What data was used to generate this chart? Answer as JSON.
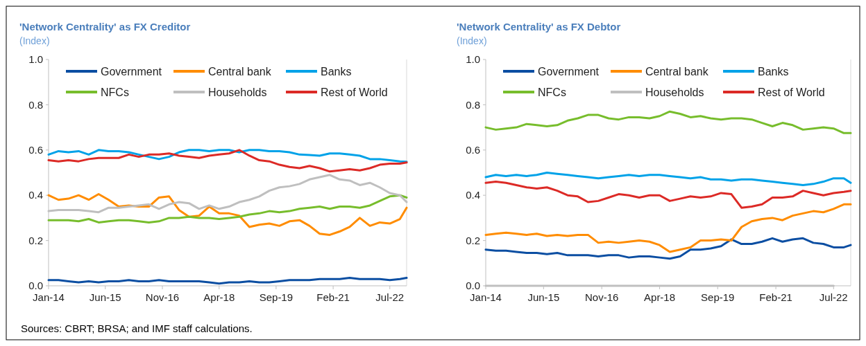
{
  "chart_data": [
    {
      "type": "line",
      "title": "'Network Centrality' as FX Creditor",
      "subtitle": "(Index)",
      "legend": "top",
      "grid": false,
      "annotations": [
        "Sources: CBRT; BRSA; and IMF staff calculations."
      ],
      "x": [
        "2014-01",
        "2014-04",
        "2014-07",
        "2014-10",
        "2015-01",
        "2015-04",
        "2015-07",
        "2015-10",
        "2016-01",
        "2016-04",
        "2016-07",
        "2016-10",
        "2017-01",
        "2017-04",
        "2017-07",
        "2017-10",
        "2018-01",
        "2018-04",
        "2018-07",
        "2018-10",
        "2019-01",
        "2019-04",
        "2019-07",
        "2019-10",
        "2020-01",
        "2020-04",
        "2020-07",
        "2020-10",
        "2021-01",
        "2021-04",
        "2021-07",
        "2021-10",
        "2022-01",
        "2022-04",
        "2022-07",
        "2022-10",
        "2022-12"
      ],
      "xlim": [
        "2014-01",
        "2022-12"
      ],
      "xticks": [
        {
          "value": "2014-01",
          "label": "Jan-14"
        },
        {
          "value": "2015-06",
          "label": "Jun-15"
        },
        {
          "value": "2016-11",
          "label": "Nov-16"
        },
        {
          "value": "2018-04",
          "label": "Apr-18"
        },
        {
          "value": "2019-09",
          "label": "Sep-19"
        },
        {
          "value": "2021-02",
          "label": "Feb-21"
        },
        {
          "value": "2022-07",
          "label": "Jul-22"
        }
      ],
      "ylim": [
        0,
        1
      ],
      "yticks": [
        {
          "value": 0,
          "label": "0.0"
        },
        {
          "value": 0.2,
          "label": "0.2"
        },
        {
          "value": 0.4,
          "label": "0.4"
        },
        {
          "value": 0.6,
          "label": "0.6"
        },
        {
          "value": 0.8,
          "label": "0.8"
        },
        {
          "value": 1,
          "label": "1.0"
        }
      ],
      "series": [
        {
          "name": "Government",
          "color": "#0b4ea2",
          "values": [
            0.025,
            0.025,
            0.02,
            0.015,
            0.02,
            0.015,
            0.02,
            0.02,
            0.025,
            0.02,
            0.02,
            0.025,
            0.02,
            0.02,
            0.02,
            0.02,
            0.015,
            0.01,
            0.015,
            0.015,
            0.02,
            0.015,
            0.015,
            0.02,
            0.025,
            0.025,
            0.025,
            0.03,
            0.03,
            0.03,
            0.035,
            0.03,
            0.03,
            0.03,
            0.025,
            0.03,
            0.035
          ]
        },
        {
          "name": "Central bank",
          "color": "#ff8c00",
          "values": [
            0.4,
            0.38,
            0.385,
            0.4,
            0.38,
            0.405,
            0.38,
            0.35,
            0.355,
            0.35,
            0.35,
            0.39,
            0.395,
            0.335,
            0.305,
            0.31,
            0.35,
            0.32,
            0.32,
            0.31,
            0.26,
            0.27,
            0.275,
            0.265,
            0.285,
            0.29,
            0.265,
            0.23,
            0.225,
            0.24,
            0.26,
            0.3,
            0.265,
            0.28,
            0.275,
            0.295,
            0.345
          ]
        },
        {
          "name": "Banks",
          "color": "#00a2e8",
          "values": [
            0.58,
            0.595,
            0.59,
            0.595,
            0.58,
            0.6,
            0.595,
            0.595,
            0.59,
            0.58,
            0.57,
            0.56,
            0.57,
            0.59,
            0.6,
            0.6,
            0.595,
            0.6,
            0.6,
            0.59,
            0.6,
            0.6,
            0.595,
            0.595,
            0.59,
            0.58,
            0.578,
            0.575,
            0.585,
            0.585,
            0.58,
            0.575,
            0.56,
            0.56,
            0.555,
            0.55,
            0.548
          ]
        },
        {
          "name": "NFCs",
          "color": "#77bd2c",
          "values": [
            0.29,
            0.29,
            0.29,
            0.285,
            0.295,
            0.28,
            0.285,
            0.29,
            0.29,
            0.285,
            0.28,
            0.285,
            0.3,
            0.3,
            0.305,
            0.3,
            0.3,
            0.295,
            0.3,
            0.305,
            0.315,
            0.32,
            0.33,
            0.325,
            0.33,
            0.34,
            0.345,
            0.35,
            0.34,
            0.35,
            0.35,
            0.345,
            0.355,
            0.375,
            0.395,
            0.4,
            0.39
          ]
        },
        {
          "name": "Households",
          "color": "#bfbfbf",
          "values": [
            0.33,
            0.335,
            0.335,
            0.335,
            0.33,
            0.325,
            0.345,
            0.345,
            0.35,
            0.355,
            0.36,
            0.34,
            0.36,
            0.37,
            0.365,
            0.34,
            0.355,
            0.34,
            0.35,
            0.37,
            0.38,
            0.395,
            0.42,
            0.435,
            0.44,
            0.45,
            0.47,
            0.48,
            0.49,
            0.47,
            0.465,
            0.445,
            0.455,
            0.435,
            0.41,
            0.4,
            0.37
          ]
        },
        {
          "name": "Rest of World",
          "color": "#dc2a26",
          "values": [
            0.555,
            0.55,
            0.555,
            0.55,
            0.56,
            0.565,
            0.565,
            0.565,
            0.58,
            0.57,
            0.58,
            0.58,
            0.585,
            0.575,
            0.57,
            0.565,
            0.575,
            0.58,
            0.585,
            0.6,
            0.575,
            0.555,
            0.55,
            0.535,
            0.525,
            0.52,
            0.53,
            0.52,
            0.505,
            0.51,
            0.515,
            0.51,
            0.52,
            0.535,
            0.54,
            0.54,
            0.545
          ]
        }
      ]
    },
    {
      "type": "line",
      "title": "'Network Centrality' as FX Debtor",
      "subtitle": "(Index)",
      "legend": "top",
      "grid": false,
      "x": [
        "2014-01",
        "2014-04",
        "2014-07",
        "2014-10",
        "2015-01",
        "2015-04",
        "2015-07",
        "2015-10",
        "2016-01",
        "2016-04",
        "2016-07",
        "2016-10",
        "2017-01",
        "2017-04",
        "2017-07",
        "2017-10",
        "2018-01",
        "2018-04",
        "2018-07",
        "2018-10",
        "2019-01",
        "2019-04",
        "2019-07",
        "2019-10",
        "2020-01",
        "2020-04",
        "2020-07",
        "2020-10",
        "2021-01",
        "2021-04",
        "2021-07",
        "2021-10",
        "2022-01",
        "2022-04",
        "2022-07",
        "2022-10",
        "2022-12"
      ],
      "xlim": [
        "2014-01",
        "2022-12"
      ],
      "xticks": [
        {
          "value": "2014-01",
          "label": "Jan-14"
        },
        {
          "value": "2015-06",
          "label": "Jun-15"
        },
        {
          "value": "2016-11",
          "label": "Nov-16"
        },
        {
          "value": "2018-04",
          "label": "Apr-18"
        },
        {
          "value": "2019-09",
          "label": "Sep-19"
        },
        {
          "value": "2021-02",
          "label": "Feb-21"
        },
        {
          "value": "2022-07",
          "label": "Jul-22"
        }
      ],
      "ylim": [
        0,
        1
      ],
      "yticks": [
        {
          "value": 0,
          "label": "0.0"
        },
        {
          "value": 0.2,
          "label": "0.2"
        },
        {
          "value": 0.4,
          "label": "0.4"
        },
        {
          "value": 0.6,
          "label": "0.6"
        },
        {
          "value": 0.8,
          "label": "0.8"
        },
        {
          "value": 1,
          "label": "1.0"
        }
      ],
      "series": [
        {
          "name": "Government",
          "color": "#0b4ea2",
          "values": [
            0.16,
            0.155,
            0.155,
            0.15,
            0.145,
            0.145,
            0.14,
            0.145,
            0.135,
            0.135,
            0.135,
            0.13,
            0.135,
            0.135,
            0.125,
            0.13,
            0.13,
            0.125,
            0.12,
            0.13,
            0.16,
            0.16,
            0.165,
            0.175,
            0.205,
            0.185,
            0.185,
            0.195,
            0.21,
            0.195,
            0.205,
            0.21,
            0.19,
            0.185,
            0.17,
            0.17,
            0.18
          ]
        },
        {
          "name": "Central bank",
          "color": "#ff8c00",
          "values": [
            0.225,
            0.23,
            0.235,
            0.23,
            0.225,
            0.23,
            0.22,
            0.225,
            0.22,
            0.225,
            0.225,
            0.19,
            0.195,
            0.19,
            0.195,
            0.2,
            0.195,
            0.18,
            0.15,
            0.16,
            0.17,
            0.2,
            0.2,
            0.205,
            0.2,
            0.26,
            0.285,
            0.295,
            0.3,
            0.29,
            0.31,
            0.32,
            0.33,
            0.325,
            0.34,
            0.36,
            0.36
          ]
        },
        {
          "name": "Banks",
          "color": "#00a2e8",
          "values": [
            0.48,
            0.49,
            0.485,
            0.49,
            0.485,
            0.49,
            0.5,
            0.495,
            0.49,
            0.485,
            0.48,
            0.475,
            0.48,
            0.485,
            0.49,
            0.485,
            0.49,
            0.49,
            0.485,
            0.48,
            0.475,
            0.48,
            0.47,
            0.47,
            0.465,
            0.47,
            0.47,
            0.465,
            0.46,
            0.455,
            0.45,
            0.445,
            0.45,
            0.46,
            0.475,
            0.475,
            0.455
          ]
        },
        {
          "name": "NFCs",
          "color": "#77bd2c",
          "values": [
            0.7,
            0.69,
            0.695,
            0.7,
            0.715,
            0.71,
            0.705,
            0.71,
            0.73,
            0.74,
            0.755,
            0.755,
            0.74,
            0.735,
            0.745,
            0.745,
            0.74,
            0.75,
            0.77,
            0.76,
            0.745,
            0.75,
            0.74,
            0.735,
            0.74,
            0.74,
            0.735,
            0.72,
            0.705,
            0.72,
            0.71,
            0.69,
            0.695,
            0.7,
            0.695,
            0.675,
            0.675
          ]
        },
        {
          "name": "Households",
          "color": "#bfbfbf",
          "values": [
            0,
            0,
            0,
            0,
            0,
            0,
            0,
            0,
            0,
            0,
            0,
            0,
            0,
            0,
            0,
            0,
            0,
            0,
            0,
            0,
            0,
            0,
            0,
            0,
            0,
            0,
            0,
            0,
            0,
            0,
            0,
            0,
            0,
            0,
            0,
            null,
            null
          ]
        },
        {
          "name": "Rest of World",
          "color": "#dc2a26",
          "values": [
            0.455,
            0.46,
            0.455,
            0.445,
            0.435,
            0.43,
            0.435,
            0.42,
            0.4,
            0.395,
            0.37,
            0.375,
            0.39,
            0.405,
            0.4,
            0.39,
            0.4,
            0.4,
            0.375,
            0.385,
            0.395,
            0.39,
            0.395,
            0.41,
            0.405,
            0.345,
            0.35,
            0.36,
            0.39,
            0.39,
            0.395,
            0.42,
            0.41,
            0.4,
            0.41,
            0.415,
            0.42
          ]
        }
      ]
    }
  ]
}
